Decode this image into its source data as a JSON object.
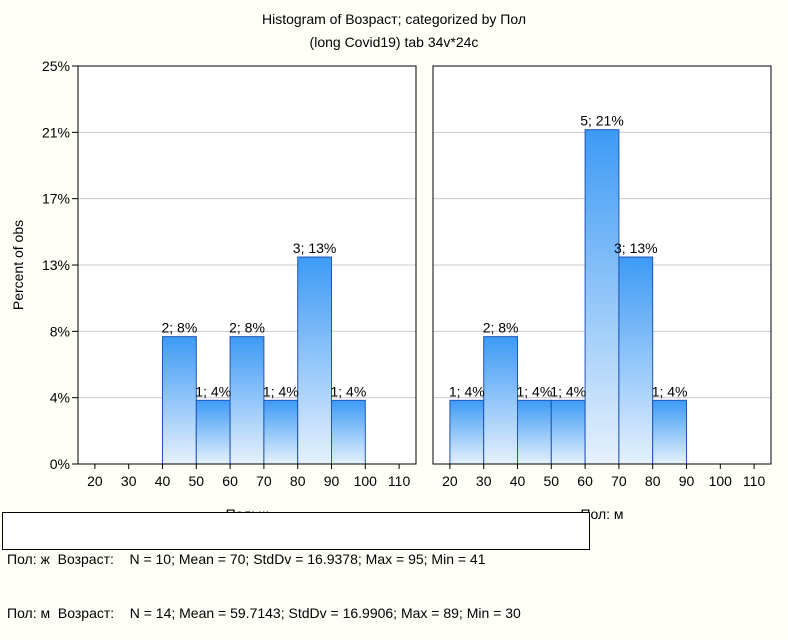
{
  "chart_data": {
    "type": "bar",
    "title": "Histogram of Возраст; categorized by Пол",
    "subtitle": "(long Covid19) tab 34v*24c",
    "ylabel": "Percent of obs",
    "y_ticks": [
      "0%",
      "4%",
      "8%",
      "13%",
      "17%",
      "21%",
      "25%"
    ],
    "ylim": [
      0,
      25
    ],
    "x_ticks": [
      20,
      30,
      40,
      50,
      60,
      70,
      80,
      90,
      100,
      110
    ],
    "xlim": [
      15,
      115
    ],
    "grid": true,
    "panels": [
      {
        "xlabel": "Пол: ж",
        "bins": [
          {
            "from": 40,
            "to": 50,
            "count": 2,
            "percent": 8,
            "label": "2; 8%"
          },
          {
            "from": 50,
            "to": 60,
            "count": 1,
            "percent": 4,
            "label": "1; 4%"
          },
          {
            "from": 60,
            "to": 70,
            "count": 2,
            "percent": 8,
            "label": "2; 8%"
          },
          {
            "from": 70,
            "to": 80,
            "count": 1,
            "percent": 4,
            "label": "1; 4%"
          },
          {
            "from": 80,
            "to": 90,
            "count": 3,
            "percent": 13,
            "label": "3; 13%"
          },
          {
            "from": 90,
            "to": 100,
            "count": 1,
            "percent": 4,
            "label": "1; 4%"
          }
        ]
      },
      {
        "xlabel": "Пол: м",
        "bins": [
          {
            "from": 20,
            "to": 30,
            "count": 1,
            "percent": 4,
            "label": "1; 4%"
          },
          {
            "from": 30,
            "to": 40,
            "count": 2,
            "percent": 8,
            "label": "2; 8%"
          },
          {
            "from": 40,
            "to": 50,
            "count": 1,
            "percent": 4,
            "label": "1; 4%"
          },
          {
            "from": 50,
            "to": 60,
            "count": 1,
            "percent": 4,
            "label": "1; 4%"
          },
          {
            "from": 60,
            "to": 70,
            "count": 5,
            "percent": 21,
            "label": "5; 21%"
          },
          {
            "from": 70,
            "to": 80,
            "count": 3,
            "percent": 13,
            "label": "3; 13%"
          },
          {
            "from": 80,
            "to": 90,
            "count": 1,
            "percent": 4,
            "label": "1; 4%"
          }
        ]
      }
    ],
    "colors": {
      "bar_top": "#3d9af5",
      "bar_bottom": "#e6f1fd",
      "bar_stroke": "#1f55b5",
      "grid": "#cccccc"
    },
    "stats": [
      "Пол: ж  Возраст:    N = 10; Mean = 70; StdDv = 16.9378; Max = 95; Min = 41",
      "Пол: м  Возраст:    N = 14; Mean = 59.7143; StdDv = 16.9906; Max = 89; Min = 30"
    ]
  }
}
